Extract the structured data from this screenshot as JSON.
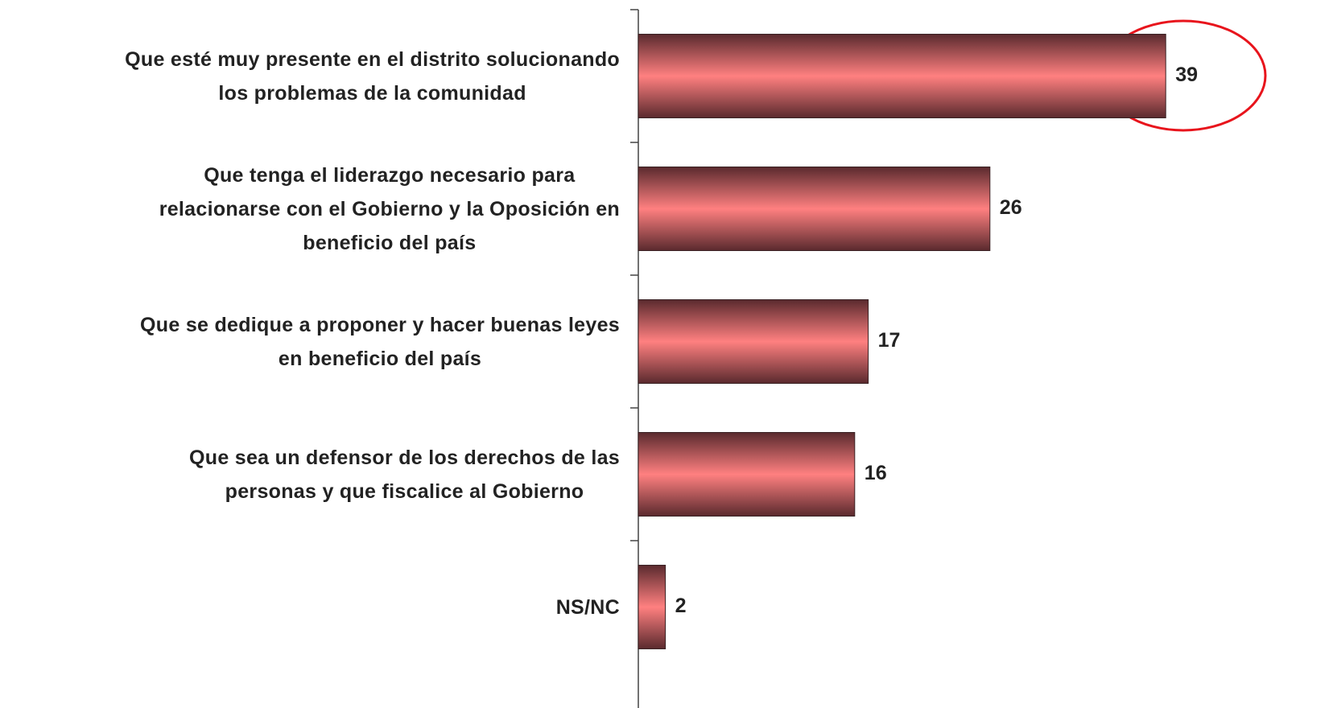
{
  "chart_data": {
    "type": "bar",
    "orientation": "horizontal",
    "categories": [
      "Que esté muy presente en el distrito solucionando\nlos problemas de la comunidad",
      "Que tenga el liderazgo necesario para\nrelacionarse con el Gobierno y la Oposición en\nbeneficio del país",
      "Que se dedique a proponer y hacer buenas leyes\nen beneficio del país",
      "Que sea un defensor de los derechos de las\npersonas y que fiscalice al Gobierno",
      "NS/NC"
    ],
    "values": [
      39,
      26,
      17,
      16,
      2
    ],
    "color": "#ff8080"
  }
}
